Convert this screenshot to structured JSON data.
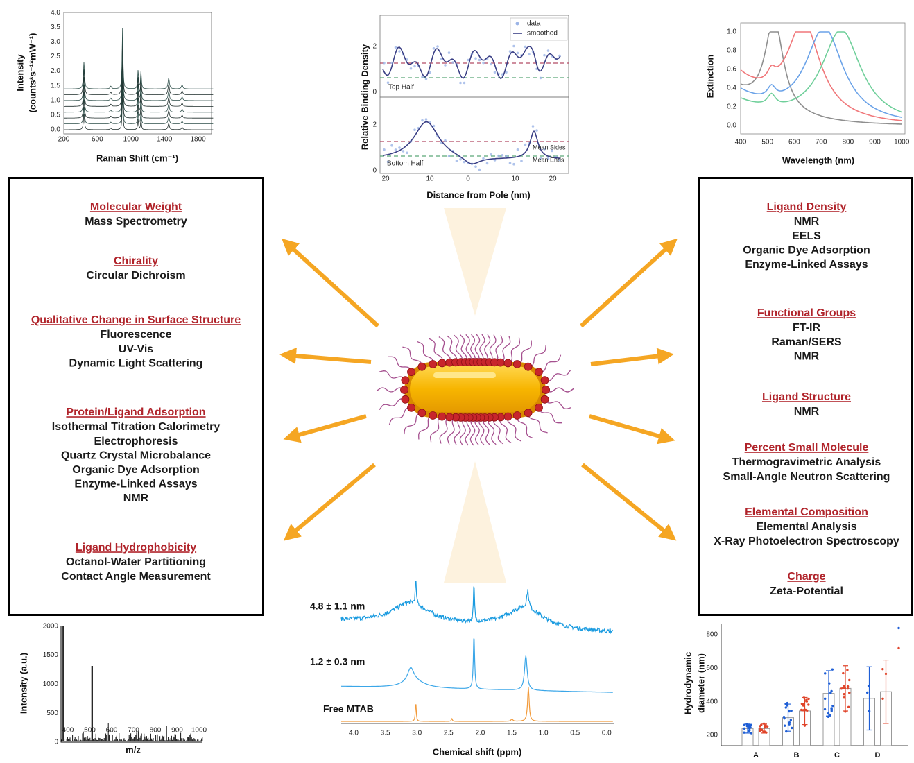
{
  "raman": {
    "y_label_1": "Intensity",
    "y_label_2": "(counts*s⁻¹*mW⁻¹)",
    "x_label": "Raman Shift (cm⁻¹)",
    "xticks": [
      "200",
      "600",
      "1000",
      "1400",
      "1800"
    ],
    "yticks": [
      "0.0",
      "0.5",
      "1.0",
      "1.5",
      "2.0",
      "2.5",
      "3.0",
      "3.5",
      "4.0"
    ]
  },
  "binding": {
    "y_label": "Relative Binding Density",
    "x_label": "Distance from Pole (nm)",
    "legend": [
      "data",
      "smoothed"
    ],
    "top_label": "Top Half",
    "bottom_label": "Bottom Half",
    "mean_sides": "Mean Sides",
    "mean_ends": "Mean Ends",
    "xticks": [
      "20",
      "10",
      "0",
      "10",
      "20"
    ],
    "yticks_top": [
      "0",
      "2"
    ],
    "yticks_bottom": [
      "0",
      "2"
    ]
  },
  "extinction": {
    "y_label": "Extinction",
    "x_label": "Wavelength (nm)",
    "xticks": [
      "400",
      "500",
      "600",
      "700",
      "800",
      "900",
      "1000"
    ],
    "yticks": [
      "0.0",
      "0.2",
      "0.4",
      "0.6",
      "0.8",
      "1.0"
    ]
  },
  "mass": {
    "y_label": "Intensity (a.u.)",
    "x_label": "m/z",
    "xticks": [
      "400",
      "500",
      "600",
      "700",
      "800",
      "900",
      "1000"
    ],
    "yticks": [
      "0",
      "500",
      "1000",
      "1500",
      "2000"
    ]
  },
  "nmr": {
    "x_label": "Chemical shift (ppm)",
    "traces": [
      "4.8 ± 1.1 nm",
      "1.2 ± 0.3 nm",
      "Free MTAB"
    ],
    "xticks": [
      "4.0",
      "3.5",
      "3.0",
      "2.5",
      "2.0",
      "1.5",
      "1.0",
      "0.5",
      "0.0"
    ]
  },
  "dls": {
    "y_label_1": "Hydrodynamic",
    "y_label_2": "diameter (nm)",
    "yticks": [
      "200",
      "400",
      "600",
      "800"
    ],
    "categories": [
      "A",
      "B",
      "C",
      "D"
    ]
  },
  "left_box": {
    "sections": [
      {
        "heading": "Molecular Weight",
        "items": [
          "Mass Spectrometry"
        ]
      },
      {
        "heading": "Chirality",
        "items": [
          "Circular Dichroism"
        ]
      },
      {
        "heading": "Qualitative Change in Surface Structure",
        "items": [
          "Fluorescence",
          "UV-Vis",
          "Dynamic Light Scattering"
        ]
      },
      {
        "heading": "Protein/Ligand Adsorption",
        "items": [
          "Isothermal Titration Calorimetry",
          "Electrophoresis",
          "Quartz Crystal Microbalance",
          "Organic Dye Adsorption",
          "Enzyme-Linked Assays",
          "NMR"
        ]
      },
      {
        "heading": "Ligand Hydrophobicity",
        "items": [
          "Octanol-Water Partitioning",
          "Contact Angle Measurement"
        ]
      }
    ]
  },
  "right_box": {
    "sections": [
      {
        "heading": "Ligand Density",
        "items": [
          "NMR",
          "EELS",
          "Organic Dye Adsorption",
          "Enzyme-Linked Assays"
        ]
      },
      {
        "heading": "Functional Groups",
        "items": [
          "FT-IR",
          "Raman/SERS",
          "NMR"
        ]
      },
      {
        "heading": "Ligand Structure",
        "items": [
          "NMR"
        ]
      },
      {
        "heading": "Percent Small Molecule",
        "items": [
          "Thermogravimetric Analysis",
          "Small-Angle Neutron Scattering"
        ]
      },
      {
        "heading": "Elemental Composition",
        "items": [
          "Elemental Analysis",
          "X-Ray Photoelectron Spectroscopy"
        ]
      },
      {
        "heading": "Charge",
        "items": [
          "Zeta-Potential"
        ]
      }
    ]
  }
}
